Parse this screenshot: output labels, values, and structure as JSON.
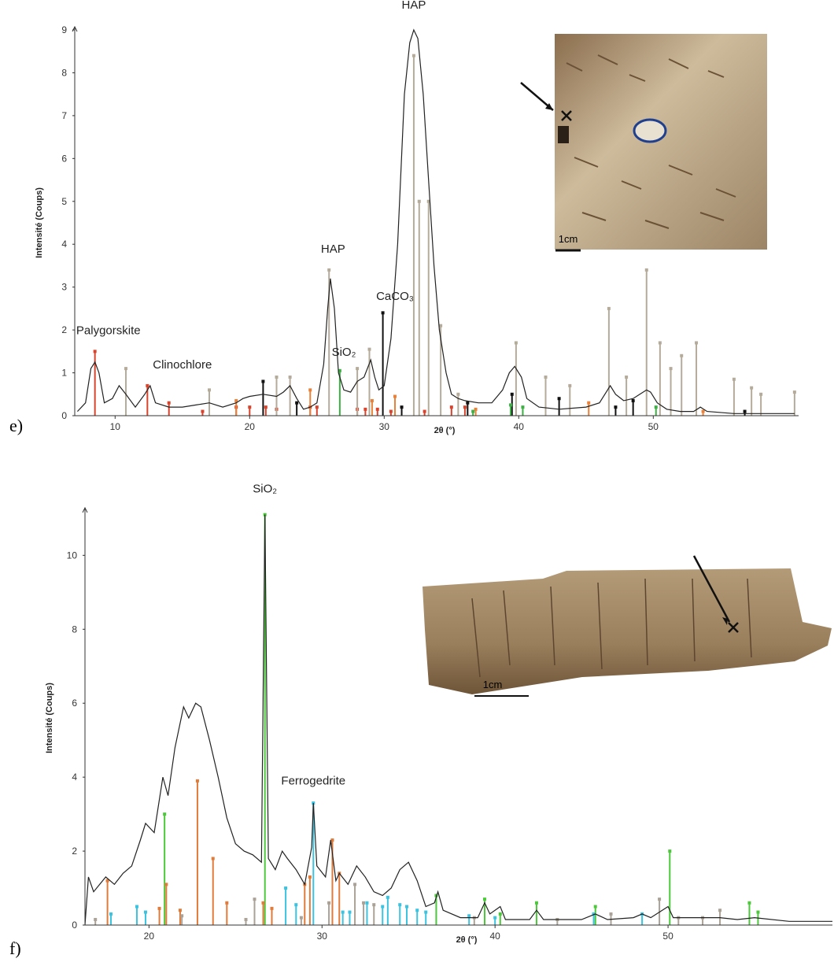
{
  "chart_data": [
    {
      "type": "line",
      "panel_label": "e)",
      "xlabel": "2θ (°)",
      "ylabel": "Intensité (Coups)",
      "image_scale_label": "1cm",
      "xlim": [
        7,
        60.8
      ],
      "ylim": [
        0,
        9
      ],
      "xticks": [
        10,
        20,
        30,
        40,
        50
      ],
      "yticks": [
        0,
        1,
        2,
        3,
        4,
        5,
        6,
        7,
        8,
        9
      ],
      "grid": false,
      "series": [
        {
          "color": "#222222",
          "x": [
            7.2,
            7.8,
            8.2,
            8.5,
            8.8,
            9.2,
            9.8,
            10.3,
            10.8,
            11.5,
            12.2,
            12.6,
            13,
            14,
            15,
            16,
            17,
            18,
            19,
            19.5,
            20,
            21,
            22,
            22.5,
            23,
            23.5,
            24,
            24.5,
            25,
            25.5,
            25.8,
            26,
            26.3,
            26.6,
            27,
            27.5,
            28,
            28.5,
            29,
            29.3,
            29.6,
            30,
            30.5,
            31,
            31.5,
            31.9,
            32.2,
            32.5,
            32.9,
            33.3,
            33.7,
            34.1,
            34.6,
            35,
            35.5,
            36,
            37,
            38,
            38.8,
            39.3,
            39.7,
            40.2,
            40.6,
            41.5,
            43,
            45,
            46,
            46.5,
            46.8,
            47.2,
            47.8,
            48.5,
            49,
            49.5,
            49.8,
            50.3,
            51,
            52,
            53,
            53.5,
            54,
            56,
            58,
            60.5
          ],
          "values": [
            0.1,
            0.3,
            1.1,
            1.25,
            1.0,
            0.3,
            0.4,
            0.7,
            0.5,
            0.2,
            0.5,
            0.7,
            0.3,
            0.2,
            0.2,
            0.25,
            0.3,
            0.2,
            0.3,
            0.4,
            0.45,
            0.5,
            0.45,
            0.55,
            0.7,
            0.4,
            0.15,
            0.2,
            0.3,
            1.2,
            2.5,
            3.2,
            2.5,
            1.0,
            0.6,
            0.55,
            0.8,
            0.9,
            1.3,
            0.9,
            0.6,
            0.7,
            1.8,
            4.0,
            7.5,
            8.7,
            9.0,
            8.8,
            7.5,
            5.5,
            3.5,
            2.0,
            1.0,
            0.5,
            0.4,
            0.35,
            0.3,
            0.3,
            0.6,
            1.0,
            1.15,
            0.9,
            0.4,
            0.2,
            0.15,
            0.2,
            0.3,
            0.55,
            0.7,
            0.5,
            0.35,
            0.4,
            0.5,
            0.6,
            0.55,
            0.3,
            0.15,
            0.1,
            0.1,
            0.2,
            0.1,
            0.05,
            0.05,
            0.05
          ]
        }
      ],
      "sticks": [
        {
          "color": "#d9432b",
          "x": [
            8.5,
            12.4,
            14,
            16.5,
            19,
            20,
            21.2,
            22,
            24.5,
            25,
            28,
            28.6,
            29.5,
            30.5,
            33,
            35,
            36
          ],
          "values": [
            1.5,
            0.7,
            0.3,
            0.1,
            0.2,
            0.2,
            0.2,
            0.15,
            0.2,
            0.2,
            0.15,
            0.15,
            0.15,
            0.1,
            0.1,
            0.2,
            0.2
          ]
        },
        {
          "color": "#b5ab9a",
          "x": [
            10.8,
            17,
            22,
            23,
            25.9,
            28,
            28.9,
            32.2,
            32.6,
            33.3,
            34.2,
            35.5,
            39.8,
            42,
            43.8,
            46.7,
            48,
            49.5,
            50.5,
            51.3,
            52.1,
            53.2,
            56,
            57.3,
            58,
            60.5
          ],
          "values": [
            1.1,
            0.6,
            0.9,
            0.9,
            3.4,
            1.1,
            1.55,
            8.4,
            5.0,
            5.0,
            2.1,
            0.5,
            1.7,
            0.9,
            0.7,
            2.5,
            0.9,
            3.4,
            1.7,
            1.1,
            1.4,
            1.7,
            0.85,
            0.65,
            0.5,
            0.55
          ]
        },
        {
          "color": "#111111",
          "x": [
            21,
            23.5,
            29.9,
            31.3,
            36.2,
            39.5,
            43,
            47.2,
            48.5,
            56.8
          ],
          "values": [
            0.8,
            0.3,
            2.4,
            0.2,
            0.3,
            0.5,
            0.4,
            0.2,
            0.35,
            0.1
          ]
        },
        {
          "color": "#e8823a",
          "x": [
            19,
            24.5,
            29.1,
            30.8,
            36.8,
            45.2,
            53.7
          ],
          "values": [
            0.35,
            0.6,
            0.35,
            0.45,
            0.15,
            0.3,
            0.1
          ]
        },
        {
          "color": "#3cb043",
          "x": [
            26.7,
            36.6,
            39.4,
            40.3,
            50.2
          ],
          "values": [
            1.05,
            0.1,
            0.25,
            0.2,
            0.2
          ]
        }
      ],
      "annotations": [
        {
          "text": "Palygorskite",
          "x": 9.5,
          "y": 1.9
        },
        {
          "text": "Clinochlore",
          "x": 15,
          "y": 1.1
        },
        {
          "text": "HAP",
          "x": 26.2,
          "y": 3.8
        },
        {
          "text": "SiO₂",
          "x": 27,
          "y": 1.4
        },
        {
          "text": "CaCO₃",
          "x": 30.8,
          "y": 2.7
        },
        {
          "text": "HAP",
          "x": 32.2,
          "y": 9.5
        }
      ]
    },
    {
      "type": "line",
      "panel_label": "f)",
      "xlabel": "2θ (°)",
      "ylabel": "Intensité (Coups)",
      "image_scale_label": "1cm",
      "xlim": [
        16.3,
        59.5
      ],
      "ylim": [
        0,
        11.2
      ],
      "xticks": [
        20,
        30,
        40,
        50
      ],
      "yticks": [
        0,
        2,
        4,
        6,
        8,
        10
      ],
      "grid": false,
      "series": [
        {
          "color": "#222222",
          "x": [
            16.3,
            16.5,
            16.8,
            17.5,
            18,
            18.5,
            19,
            19.5,
            19.8,
            20.3,
            20.8,
            21.1,
            21.5,
            22,
            22.3,
            22.7,
            23,
            23.5,
            24,
            24.5,
            25,
            25.5,
            26,
            26.5,
            26.7,
            26.9,
            27.3,
            27.7,
            28,
            28.5,
            29,
            29.4,
            29.5,
            29.7,
            30.2,
            30.5,
            30.8,
            31,
            31.5,
            32,
            32.5,
            33,
            33.5,
            34,
            34.5,
            35,
            35.5,
            36,
            36.5,
            36.7,
            37,
            38,
            39,
            39.4,
            39.7,
            40.3,
            40.6,
            42,
            42.4,
            42.8,
            45,
            45.8,
            46.5,
            48,
            48.5,
            49,
            50,
            50.3,
            51,
            53,
            54,
            55,
            57,
            59.5
          ],
          "values": [
            0,
            1.3,
            0.9,
            1.3,
            1.1,
            1.4,
            1.6,
            2.3,
            2.75,
            2.5,
            4.0,
            3.5,
            4.8,
            5.9,
            5.6,
            6.0,
            5.9,
            5.0,
            4.0,
            2.9,
            2.2,
            2.0,
            1.9,
            1.7,
            11.1,
            1.8,
            1.5,
            2.0,
            1.8,
            1.5,
            1.1,
            2.1,
            3.3,
            1.6,
            1.3,
            2.3,
            1.2,
            1.4,
            1.1,
            1.6,
            1.3,
            0.9,
            0.8,
            1.0,
            1.5,
            1.7,
            1.2,
            0.5,
            0.6,
            0.9,
            0.4,
            0.2,
            0.2,
            0.6,
            0.3,
            0.5,
            0.15,
            0.15,
            0.4,
            0.15,
            0.15,
            0.3,
            0.15,
            0.2,
            0.3,
            0.2,
            0.5,
            0.2,
            0.2,
            0.2,
            0.15,
            0.2,
            0.1,
            0.1
          ]
        }
      ],
      "sticks": [
        {
          "color": "#4cc93a",
          "x": [
            20.9,
            26.7,
            36.6,
            39.4,
            40.3,
            42.4,
            45.8,
            50.1,
            54.7,
            55.2
          ],
          "values": [
            3.0,
            11.1,
            0.8,
            0.7,
            0.3,
            0.6,
            0.5,
            2.0,
            0.6,
            0.35
          ]
        },
        {
          "color": "#e07b39",
          "x": [
            17.6,
            20.6,
            21,
            21.8,
            22.8,
            23.7,
            24.5,
            26.6,
            27.1,
            29,
            29.3,
            30.6,
            31
          ],
          "values": [
            1.2,
            0.45,
            1.1,
            0.4,
            3.9,
            1.8,
            0.6,
            0.6,
            0.45,
            1.1,
            1.3,
            2.3,
            1.4
          ]
        },
        {
          "color": "#3cc3e0",
          "x": [
            17.8,
            19.3,
            19.8,
            27.9,
            28.5,
            29.5,
            31.2,
            31.6,
            32.6,
            33.5,
            33.8,
            34.5,
            34.9,
            35.5,
            36,
            38.5,
            40,
            45.7,
            48.5
          ],
          "values": [
            0.3,
            0.5,
            0.35,
            1.0,
            0.55,
            3.3,
            0.35,
            0.35,
            0.6,
            0.5,
            0.75,
            0.55,
            0.5,
            0.4,
            0.35,
            0.25,
            0.2,
            0.3,
            0.3
          ]
        },
        {
          "color": "#aaa297",
          "x": [
            16.9,
            21.9,
            25.6,
            26.1,
            28.8,
            30.4,
            31.9,
            32.4,
            33,
            38.8,
            43.6,
            46.7,
            49.5,
            50.6,
            52,
            53
          ],
          "values": [
            0.15,
            0.25,
            0.15,
            0.7,
            0.2,
            0.6,
            1.1,
            0.6,
            0.55,
            0.2,
            0.15,
            0.3,
            0.7,
            0.2,
            0.2,
            0.4
          ]
        }
      ],
      "annotations": [
        {
          "text": "SiO₂",
          "x": 26.7,
          "y": 11.7
        },
        {
          "text": "Ferrogedrite",
          "x": 29.5,
          "y": 3.8
        }
      ]
    }
  ]
}
